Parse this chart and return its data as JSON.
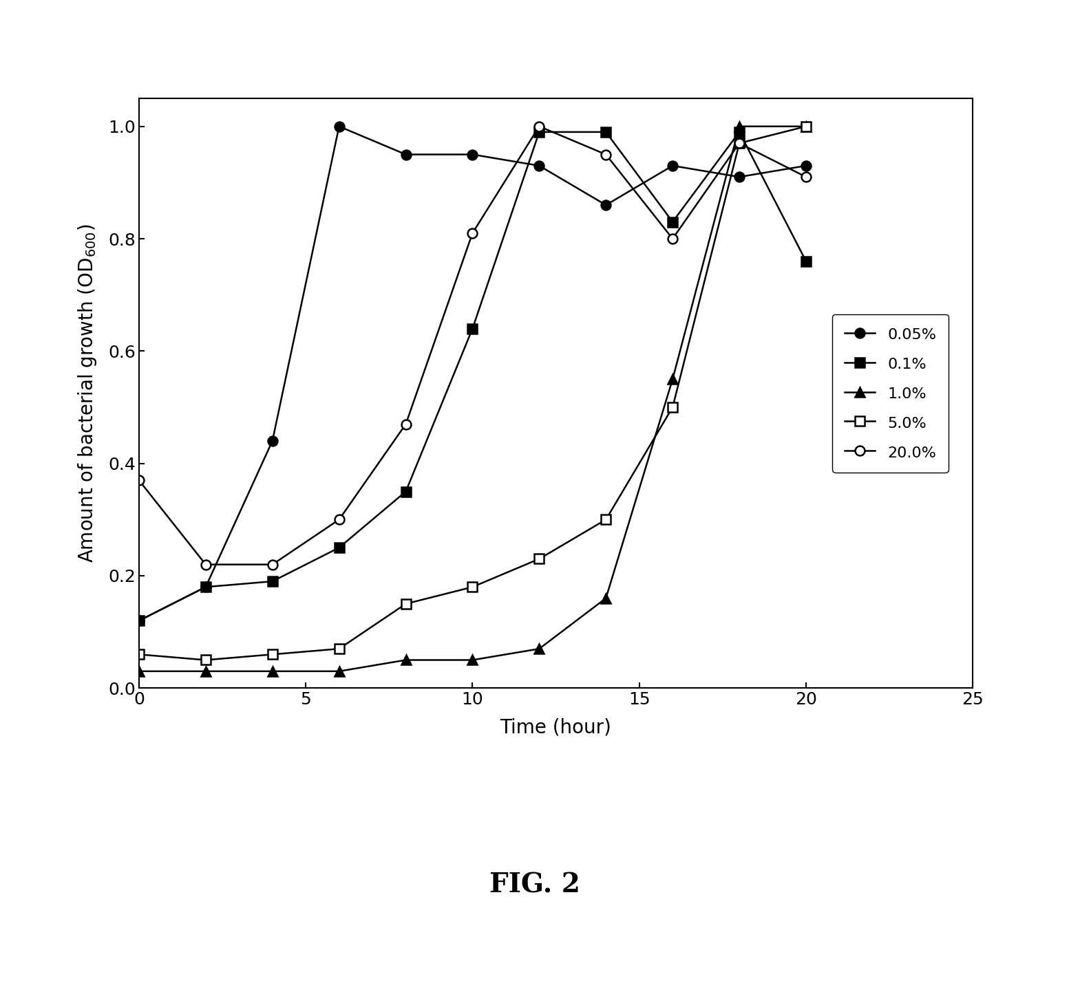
{
  "series": [
    {
      "label": "0.05%",
      "x": [
        0,
        2,
        4,
        6,
        8,
        10,
        12,
        14,
        16,
        18,
        20
      ],
      "y": [
        0.12,
        0.18,
        0.44,
        1.0,
        0.95,
        0.95,
        0.93,
        0.86,
        0.93,
        0.91,
        0.93
      ],
      "marker": "o",
      "fillstyle": "full",
      "color": "black",
      "markersize": 10
    },
    {
      "label": "0.1%",
      "x": [
        0,
        2,
        4,
        6,
        8,
        10,
        12,
        14,
        16,
        18,
        20
      ],
      "y": [
        0.12,
        0.18,
        0.19,
        0.25,
        0.35,
        0.64,
        0.99,
        0.99,
        0.83,
        0.99,
        0.76
      ],
      "marker": "s",
      "fillstyle": "full",
      "color": "black",
      "markersize": 10
    },
    {
      "label": "1.0%",
      "x": [
        0,
        2,
        4,
        6,
        8,
        10,
        12,
        14,
        16,
        18,
        20
      ],
      "y": [
        0.03,
        0.03,
        0.03,
        0.03,
        0.05,
        0.05,
        0.07,
        0.16,
        0.55,
        1.0,
        1.0
      ],
      "marker": "^",
      "fillstyle": "full",
      "color": "black",
      "markersize": 10
    },
    {
      "label": "5.0%",
      "x": [
        0,
        2,
        4,
        6,
        8,
        10,
        12,
        14,
        16,
        18,
        20
      ],
      "y": [
        0.06,
        0.05,
        0.06,
        0.07,
        0.15,
        0.18,
        0.23,
        0.3,
        0.5,
        0.97,
        1.0
      ],
      "marker": "s",
      "fillstyle": "none",
      "color": "black",
      "markersize": 10
    },
    {
      "label": "20.0%",
      "x": [
        0,
        2,
        4,
        6,
        8,
        10,
        12,
        14,
        16,
        18,
        20
      ],
      "y": [
        0.37,
        0.22,
        0.22,
        0.3,
        0.47,
        0.81,
        1.0,
        0.95,
        0.8,
        0.97,
        0.91
      ],
      "marker": "o",
      "fillstyle": "none",
      "color": "black",
      "markersize": 10
    }
  ],
  "xlabel": "Time (hour)",
  "xlim": [
    0,
    25
  ],
  "ylim": [
    0.0,
    1.05
  ],
  "xticks": [
    0,
    5,
    10,
    15,
    20,
    25
  ],
  "yticks": [
    0.0,
    0.2,
    0.4,
    0.6,
    0.8,
    1.0
  ],
  "figcaption": "FIG. 2",
  "legend_loc": "center right",
  "linewidth": 1.8,
  "fig_width": 15.53,
  "fig_height": 14.29,
  "dpi": 100
}
